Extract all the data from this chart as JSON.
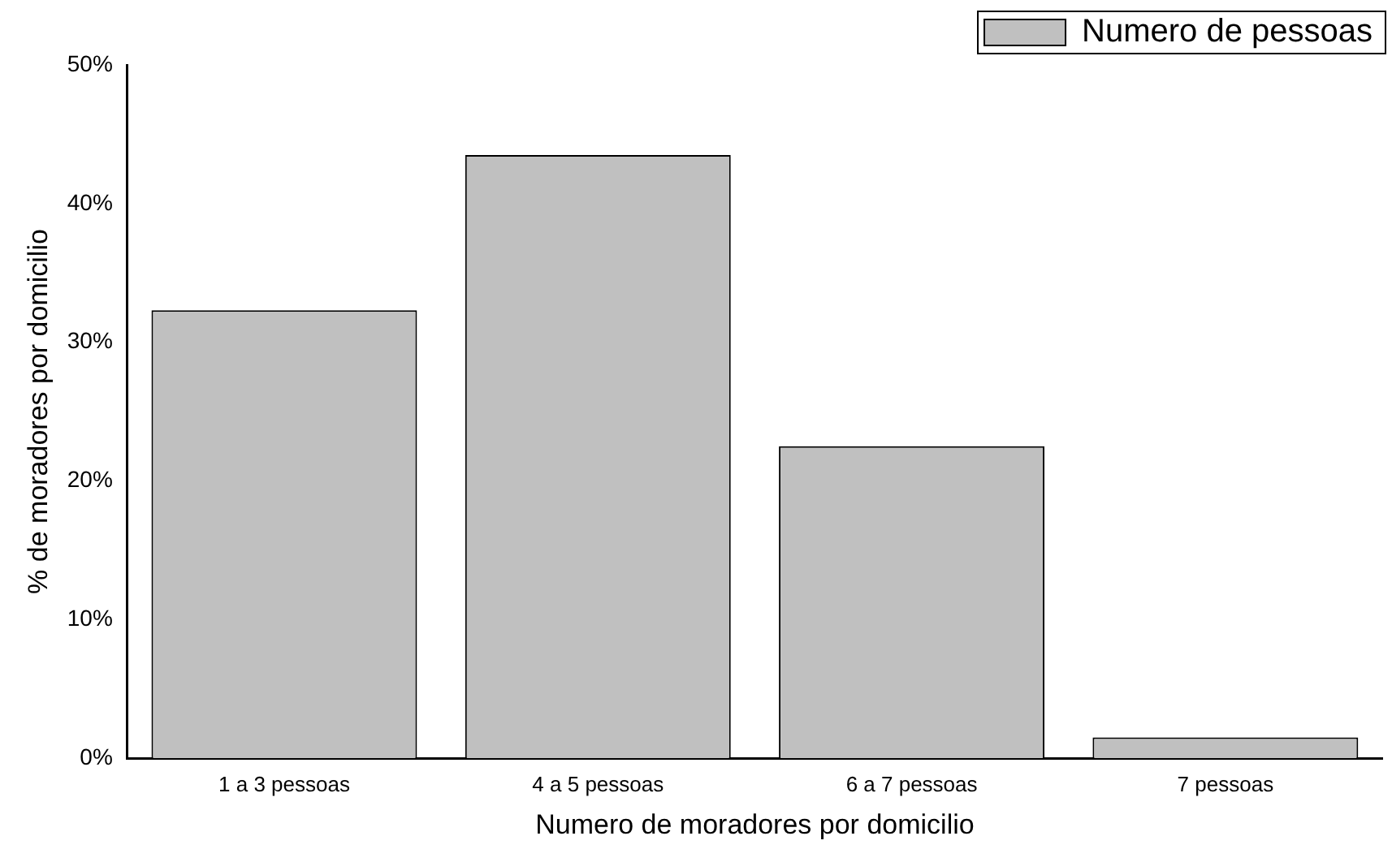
{
  "chart_data": {
    "type": "bar",
    "xlabel": "Numero de moradores por domicilio",
    "ylabel": "% de moradores por domicilio",
    "categories": [
      "1 a 3 pessoas",
      "4 a 5 pessoas",
      "6 a 7 pessoas",
      "7 pessoas"
    ],
    "series": [
      {
        "name": "Numero de pessoas",
        "color": "#c0c0c0",
        "values": [
          32.3,
          43.5,
          22.5,
          1.5
        ]
      }
    ],
    "ylim": [
      0,
      50
    ],
    "yticks": [
      {
        "value": 0,
        "label": "0%"
      },
      {
        "value": 10,
        "label": "10%"
      },
      {
        "value": 20,
        "label": "20%"
      },
      {
        "value": 30,
        "label": "30%"
      },
      {
        "value": 40,
        "label": "40%"
      },
      {
        "value": 50,
        "label": "50%"
      }
    ],
    "grid": false,
    "legend": "top right"
  }
}
